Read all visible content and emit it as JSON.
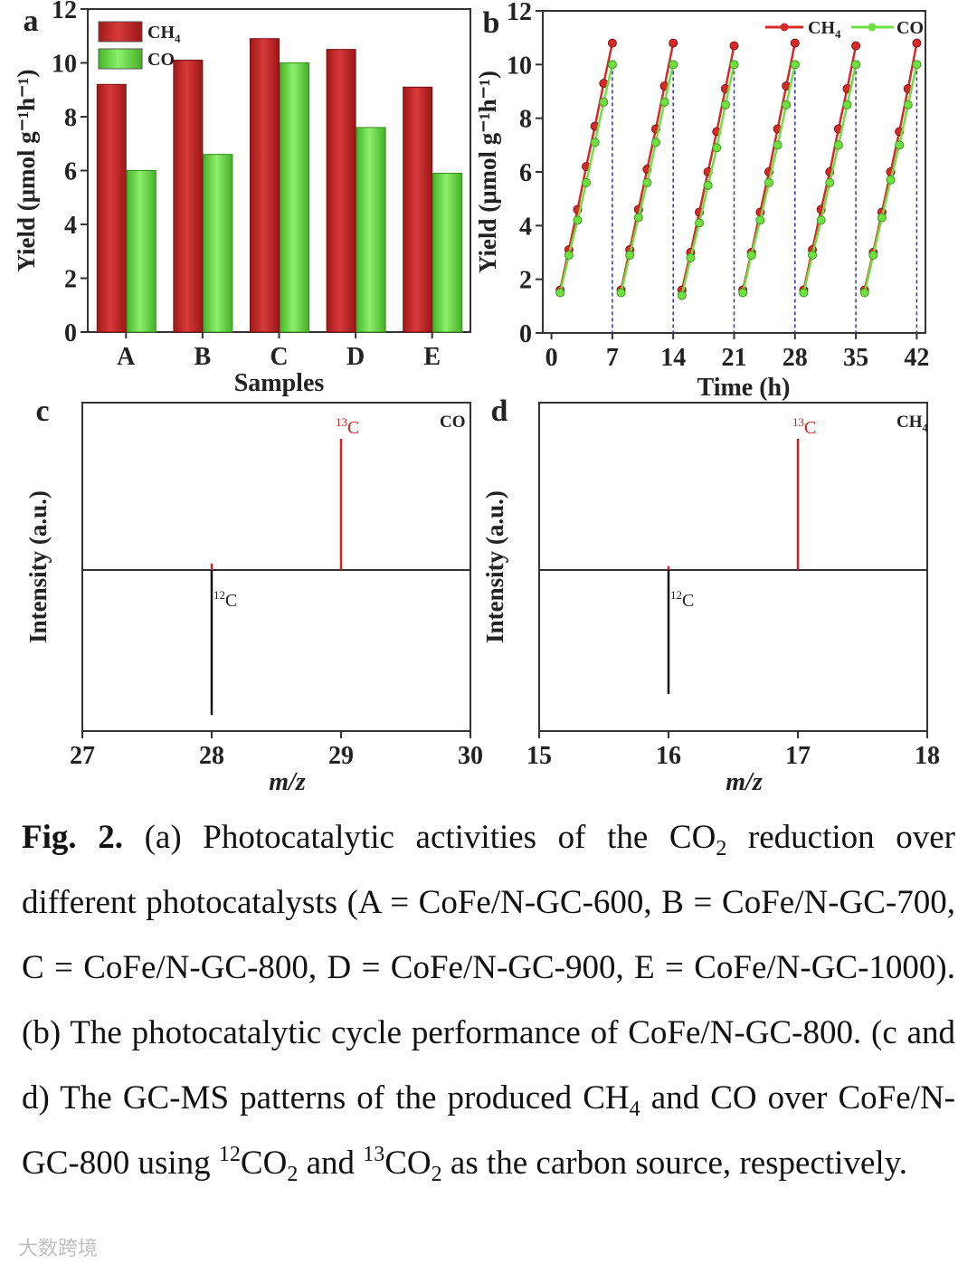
{
  "chart_data": [
    {
      "panel": "a",
      "type": "bar",
      "categories": [
        "A",
        "B",
        "C",
        "D",
        "E"
      ],
      "series": [
        {
          "name": "CH4",
          "values": [
            9.2,
            10.1,
            10.9,
            10.5,
            9.1
          ],
          "color": "#cc2a2a"
        },
        {
          "name": "CO",
          "values": [
            6.0,
            6.6,
            10.0,
            7.6,
            5.9
          ],
          "color": "#6bdd48"
        }
      ],
      "xlabel": "Samples",
      "ylabel": "Yield (μmol g⁻¹h⁻¹)",
      "ylim": [
        0,
        12
      ],
      "yticks": [
        "0",
        "2",
        "4",
        "6",
        "8",
        "10",
        "12"
      ],
      "legend": "top-left"
    },
    {
      "panel": "b",
      "type": "line",
      "xlabel": "Time (h)",
      "ylabel": "Yield (μmol g⁻¹h⁻¹)",
      "xlim": [
        -1,
        43
      ],
      "ylim": [
        0,
        12
      ],
      "xticks": [
        "0",
        "7",
        "14",
        "21",
        "28",
        "35",
        "42"
      ],
      "yticks": [
        "0",
        "2",
        "4",
        "6",
        "8",
        "10",
        "12"
      ],
      "cycle_markers_h": [
        7,
        14,
        21,
        28,
        35,
        42
      ],
      "legend": "top-right",
      "series": [
        {
          "name": "CH4",
          "color": "#d42a2a",
          "cycles": [
            {
              "x": [
                1,
                2,
                3,
                4,
                5,
                6,
                7
              ],
              "y": [
                1.6,
                3.1,
                4.6,
                6.2,
                7.7,
                9.3,
                10.8
              ]
            },
            {
              "x": [
                8,
                9,
                10,
                11,
                12,
                13,
                14
              ],
              "y": [
                1.6,
                3.1,
                4.6,
                6.1,
                7.6,
                9.2,
                10.8
              ]
            },
            {
              "x": [
                15,
                16,
                17,
                18,
                19,
                20,
                21
              ],
              "y": [
                1.6,
                3.0,
                4.5,
                6.0,
                7.5,
                9.1,
                10.7
              ]
            },
            {
              "x": [
                22,
                23,
                24,
                25,
                26,
                27,
                28
              ],
              "y": [
                1.6,
                3.0,
                4.5,
                6.0,
                7.6,
                9.2,
                10.8
              ]
            },
            {
              "x": [
                29,
                30,
                31,
                32,
                33,
                34,
                35
              ],
              "y": [
                1.6,
                3.1,
                4.6,
                6.0,
                7.6,
                9.1,
                10.7
              ]
            },
            {
              "x": [
                36,
                37,
                38,
                39,
                40,
                41,
                42
              ],
              "y": [
                1.6,
                3.0,
                4.5,
                6.0,
                7.5,
                9.1,
                10.8
              ]
            }
          ]
        },
        {
          "name": "CO",
          "color": "#6fe040",
          "cycles": [
            {
              "x": [
                1,
                2,
                3,
                4,
                5,
                6,
                7
              ],
              "y": [
                1.5,
                2.9,
                4.2,
                5.6,
                7.1,
                8.6,
                10.0
              ]
            },
            {
              "x": [
                8,
                9,
                10,
                11,
                12,
                13,
                14
              ],
              "y": [
                1.5,
                2.9,
                4.3,
                5.6,
                7.1,
                8.6,
                10.0
              ]
            },
            {
              "x": [
                15,
                16,
                17,
                18,
                19,
                20,
                21
              ],
              "y": [
                1.4,
                2.8,
                4.1,
                5.5,
                6.9,
                8.5,
                10.0
              ]
            },
            {
              "x": [
                22,
                23,
                24,
                25,
                26,
                27,
                28
              ],
              "y": [
                1.5,
                2.9,
                4.2,
                5.6,
                7.0,
                8.5,
                10.0
              ]
            },
            {
              "x": [
                29,
                30,
                31,
                32,
                33,
                34,
                35
              ],
              "y": [
                1.5,
                2.9,
                4.2,
                5.6,
                7.0,
                8.5,
                10.0
              ]
            },
            {
              "x": [
                36,
                37,
                38,
                39,
                40,
                41,
                42
              ],
              "y": [
                1.5,
                2.9,
                4.3,
                5.7,
                7.0,
                8.5,
                10.0
              ]
            }
          ]
        }
      ]
    },
    {
      "panel": "c",
      "type": "bar",
      "title": "CO",
      "xlabel": "m/z",
      "ylabel": "Intensity (a.u.)",
      "xlim": [
        27,
        30
      ],
      "xticks": [
        "27",
        "28",
        "29",
        "30"
      ],
      "upper": {
        "label": "13C",
        "color": "#d42020",
        "peaks": [
          {
            "x": 28,
            "y": 0.05
          },
          {
            "x": 29,
            "y": 1.0
          }
        ]
      },
      "lower": {
        "label": "12C",
        "color": "#111111",
        "peaks": [
          {
            "x": 28,
            "y": 0.9
          }
        ]
      }
    },
    {
      "panel": "d",
      "type": "bar",
      "title": "CH4",
      "xlabel": "m/z",
      "ylabel": "Intensity (a.u.)",
      "xlim": [
        15,
        18
      ],
      "xticks": [
        "15",
        "16",
        "17",
        "18"
      ],
      "upper": {
        "label": "13C",
        "color": "#d42020",
        "peaks": [
          {
            "x": 16,
            "y": 0.03
          },
          {
            "x": 17,
            "y": 1.0
          }
        ]
      },
      "lower": {
        "label": "12C",
        "color": "#111111",
        "peaks": [
          {
            "x": 16,
            "y": 0.77
          }
        ]
      }
    }
  ],
  "panel_letters": [
    "a",
    "b",
    "c",
    "d"
  ],
  "caption": {
    "fig_label": "Fig. 2.",
    "parts": [
      {
        "t": " (a) Photocatalytic activities of the CO"
      },
      {
        "sub": "2"
      },
      {
        "t": " reduction over different photocatalysts (A = CoFe/N-GC-600, B = CoFe/N-GC-700, C = CoFe/N-GC-800, D = CoFe/N-GC-900, E = CoFe/N-GC-1000). (b) The photocatalytic cycle performance of CoFe/N-GC-800. (c and d) The GC-MS patterns of the produced CH"
      },
      {
        "sub": "4"
      },
      {
        "t": " and CO over CoFe/N-GC-800 using "
      },
      {
        "sup": "12"
      },
      {
        "t": "CO"
      },
      {
        "sub": "2"
      },
      {
        "t": " and "
      },
      {
        "sup": "13"
      },
      {
        "t": "CO"
      },
      {
        "sub": "2"
      },
      {
        "t": " as the carbon source, respectively."
      }
    ]
  },
  "watermark": "大数跨境"
}
